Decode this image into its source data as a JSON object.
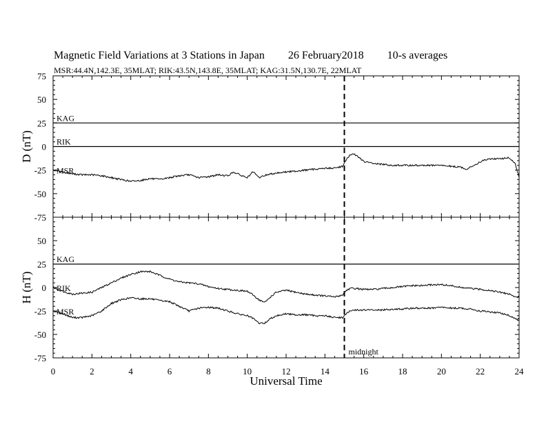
{
  "title": {
    "main": "Magnetic Field Variations at 3 Stations in Japan",
    "date": "26 February2018",
    "averaging": "10-s averages"
  },
  "subtitle": "MSR:44.4N,142.3E, 35MLAT;  RIK:43.5N,143.8E, 35MLAT;  KAG:31.5N,130.7E, 22MLAT",
  "chart_data": [
    {
      "type": "line",
      "panel": "D",
      "ylabel": "D (nT)",
      "ylim": [
        -75,
        75
      ],
      "yticks": [
        75,
        50,
        25,
        0,
        -25,
        -50,
        -75
      ],
      "xlim": [
        0,
        24
      ],
      "series": [
        {
          "name": "KAG",
          "x": [
            0,
            24
          ],
          "y": [
            25,
            25
          ]
        },
        {
          "name": "RIK",
          "x": [
            0,
            24
          ],
          "y": [
            0,
            0
          ]
        },
        {
          "name": "MSR",
          "x": [
            0,
            0.5,
            1,
            1.5,
            2,
            2.5,
            3,
            3.5,
            4,
            4.5,
            5,
            5.5,
            6,
            6.5,
            7,
            7.5,
            8,
            8.5,
            9,
            9.3,
            9.6,
            10,
            10.3,
            10.6,
            11,
            11.5,
            12,
            12.5,
            13,
            13.5,
            14,
            14.5,
            14.9,
            15.1,
            15.3,
            15.5,
            15.8,
            16,
            16.5,
            17,
            17.5,
            18,
            18.5,
            19,
            19.5,
            20,
            20.5,
            21,
            21.3,
            21.6,
            22,
            22.5,
            23,
            23.5,
            23.8,
            24
          ],
          "y": [
            -25,
            -27,
            -29,
            -30,
            -30,
            -31,
            -33,
            -35,
            -37,
            -36,
            -34,
            -35,
            -33,
            -31,
            -30,
            -33,
            -32,
            -30,
            -31,
            -27,
            -30,
            -33,
            -27,
            -33,
            -30,
            -28,
            -27,
            -26,
            -25,
            -24,
            -23,
            -23,
            -21,
            -14,
            -9,
            -8,
            -12,
            -16,
            -18,
            -19,
            -20,
            -20,
            -20,
            -20,
            -20,
            -20,
            -21,
            -22,
            -24,
            -21,
            -16,
            -13,
            -13,
            -12,
            -18,
            -33
          ]
        }
      ]
    },
    {
      "type": "line",
      "panel": "H",
      "ylabel": "H (nT)",
      "ylim": [
        -75,
        75
      ],
      "yticks": [
        75,
        50,
        25,
        0,
        -25,
        -50,
        -75
      ],
      "xlim": [
        0,
        24
      ],
      "xlabel": "Universal Time",
      "xticks": [
        0,
        2,
        4,
        6,
        8,
        10,
        12,
        14,
        16,
        18,
        20,
        22,
        24
      ],
      "series": [
        {
          "name": "KAG",
          "x": [
            0,
            24
          ],
          "y": [
            25,
            25
          ]
        },
        {
          "name": "RIK",
          "x": [
            0,
            0.5,
            1,
            1.5,
            2,
            2.5,
            3,
            3.5,
            4,
            4.5,
            5,
            5.5,
            6,
            6.5,
            7,
            7.5,
            8,
            8.5,
            9,
            9.5,
            10,
            10.3,
            10.6,
            10.9,
            11.2,
            11.5,
            12,
            12.5,
            13,
            13.5,
            14,
            14.5,
            14.9,
            15.1,
            15.3,
            15.6,
            16,
            16.5,
            17,
            17.5,
            18,
            18.5,
            19,
            19.5,
            20,
            20.5,
            21,
            21.5,
            22,
            22.5,
            23,
            23.5,
            23.8,
            24
          ],
          "y": [
            0,
            -4,
            -7,
            -6,
            -5,
            0,
            5,
            10,
            14,
            17,
            17,
            13,
            9,
            6,
            5,
            4,
            1,
            -1,
            -2,
            -3,
            -4,
            -8,
            -13,
            -16,
            -10,
            -5,
            -3,
            -5,
            -7,
            -8,
            -9,
            -10,
            -8,
            -3,
            -1,
            -1,
            -2,
            -2,
            -1,
            0,
            1,
            2,
            2,
            3,
            3,
            2,
            0,
            -1,
            -2,
            -3,
            -5,
            -7,
            -10,
            -10
          ]
        },
        {
          "name": "MSR",
          "x": [
            0,
            0.5,
            1,
            1.5,
            2,
            2.5,
            3,
            3.5,
            4,
            4.5,
            5,
            5.5,
            6,
            6.5,
            7,
            7.5,
            8,
            8.5,
            9,
            9.5,
            10,
            10.3,
            10.6,
            10.9,
            11.2,
            11.5,
            12,
            12.5,
            13,
            13.5,
            14,
            14.5,
            14.9,
            15.1,
            15.3,
            15.6,
            16,
            16.5,
            17,
            17.5,
            18,
            18.5,
            19,
            19.5,
            20,
            20.5,
            21,
            21.5,
            22,
            22.5,
            23,
            23.5,
            23.8,
            24
          ],
          "y": [
            -25,
            -28,
            -32,
            -32,
            -30,
            -25,
            -17,
            -13,
            -11,
            -12,
            -12,
            -14,
            -15,
            -20,
            -25,
            -22,
            -21,
            -22,
            -25,
            -28,
            -30,
            -33,
            -38,
            -38,
            -33,
            -30,
            -28,
            -29,
            -29,
            -30,
            -30,
            -32,
            -32,
            -28,
            -25,
            -24,
            -24,
            -24,
            -24,
            -23,
            -23,
            -22,
            -22,
            -22,
            -21,
            -22,
            -22,
            -23,
            -25,
            -26,
            -27,
            -30,
            -33,
            -34
          ]
        }
      ]
    }
  ],
  "markers": {
    "midnight_x": 15,
    "midnight_label": "midnight"
  }
}
